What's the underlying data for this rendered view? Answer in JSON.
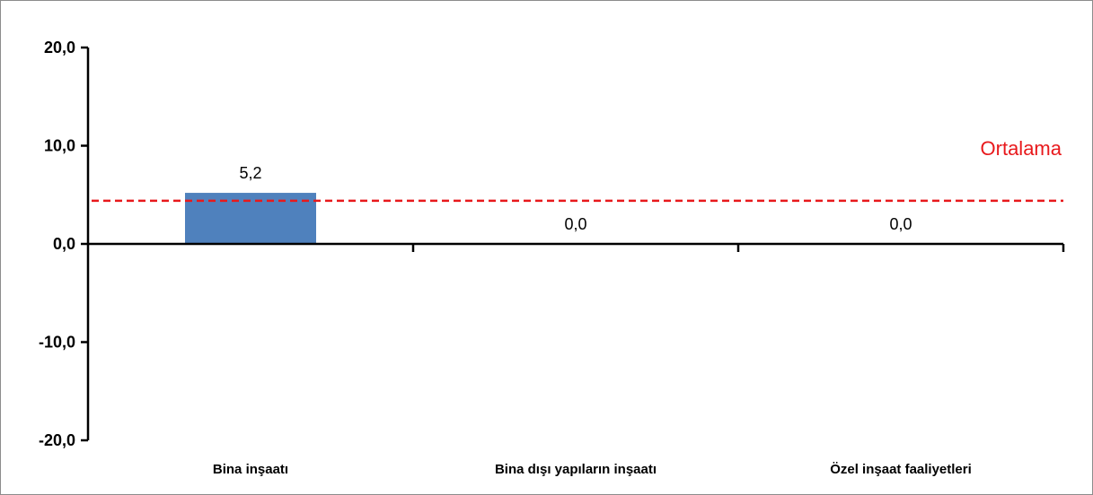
{
  "chart_data": {
    "type": "bar",
    "categories": [
      "Bina inşaatı",
      "Bina dışı yapıların inşaatı",
      "Özel inşaat faaliyetleri"
    ],
    "values": [
      5.2,
      0.0,
      0.0
    ],
    "value_labels": [
      "5,2",
      "0,0",
      "0,0"
    ],
    "ylim": [
      -20,
      20
    ],
    "yticks": [
      20,
      10,
      0,
      -10,
      -20
    ],
    "ytick_labels": [
      "20,0",
      "10,0",
      "0,0",
      "-10,0",
      "-20,0"
    ],
    "reference_line": {
      "label": "Ortalama",
      "value": 4.4,
      "style": "dashed",
      "color": "#e8191c"
    },
    "bar_color": "#4f81bd",
    "grid": false,
    "legend": "none"
  }
}
